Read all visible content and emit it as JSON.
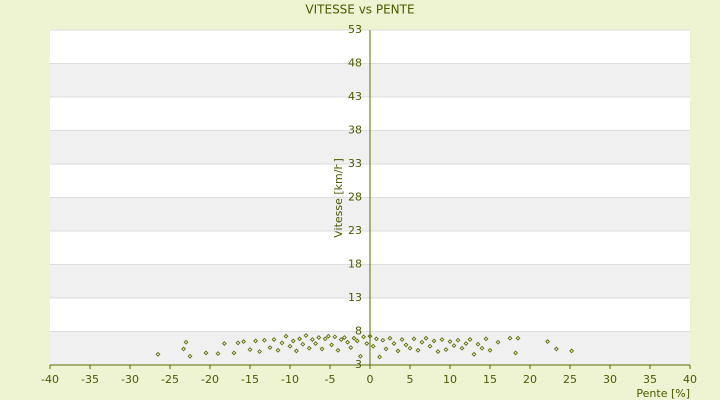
{
  "chart_data": {
    "type": "scatter",
    "title": "VITESSE vs PENTE",
    "xlabel": "Pente [%]",
    "ylabel": "Vitesse [km/h]",
    "color": "#5a6e00",
    "x": [
      -26.5,
      -23.3,
      -23,
      -22.5,
      -20.5,
      -19,
      -18.2,
      -17,
      -16.5,
      -15.8,
      -15,
      -14.3,
      -13.8,
      -13.2,
      -12.5,
      -12,
      -11.5,
      -11,
      -10.5,
      -10,
      -9.6,
      -9.2,
      -8.8,
      -8.4,
      -8,
      -7.6,
      -7.2,
      -6.8,
      -6.4,
      -6,
      -5.6,
      -5.2,
      -4.8,
      -4.4,
      -4,
      -3.6,
      -3.2,
      -2.8,
      -2.4,
      -2,
      -1.6,
      -1.2,
      -0.8,
      -0.4,
      0,
      0.4,
      0.8,
      1.2,
      1.6,
      2,
      2.5,
      3,
      3.5,
      4,
      4.5,
      5,
      5.5,
      6,
      6.5,
      7,
      7.5,
      8,
      8.5,
      9,
      9.5,
      10,
      10.5,
      11,
      11.5,
      12,
      12.5,
      13,
      13.5,
      14,
      14.5,
      15,
      16,
      17.5,
      18.2,
      18.5,
      22.2,
      23.3,
      25.2
    ],
    "values": [
      4.6,
      5.4,
      6.4,
      4.3,
      4.8,
      4.7,
      6.2,
      4.8,
      6.3,
      6.5,
      5.3,
      6.6,
      5,
      6.7,
      5.6,
      6.8,
      5.2,
      6.3,
      7.3,
      5.8,
      6.6,
      5.1,
      6.9,
      6.1,
      7.4,
      5.5,
      6.8,
      6.2,
      7.1,
      5.4,
      6.9,
      7.3,
      6,
      7.2,
      5.2,
      6.8,
      7.1,
      6.4,
      5.6,
      7,
      6.6,
      4.3,
      7.2,
      6.2,
      7.3,
      5.8,
      6.9,
      4.2,
      6.7,
      5.4,
      7,
      6.2,
      5.1,
      6.8,
      6,
      5.5,
      6.9,
      5.2,
      6.4,
      7,
      5.8,
      6.6,
      5,
      6.8,
      5.3,
      6.5,
      5.9,
      6.7,
      5.5,
      6.2,
      6.8,
      4.6,
      6.1,
      5.5,
      6.9,
      5.2,
      6.4,
      7,
      4.8,
      7,
      6.5,
      5.4,
      5.1
    ],
    "xlim": [
      -40,
      40
    ],
    "xticks": [
      -40,
      -35,
      -30,
      -25,
      -20,
      -15,
      -10,
      -5,
      0,
      5,
      10,
      15,
      20,
      25,
      30,
      35,
      40
    ],
    "ylim": [
      3,
      53
    ],
    "yticks": [
      53,
      48,
      43,
      38,
      33,
      28,
      23,
      18,
      13,
      8,
      3
    ],
    "grid": true
  }
}
